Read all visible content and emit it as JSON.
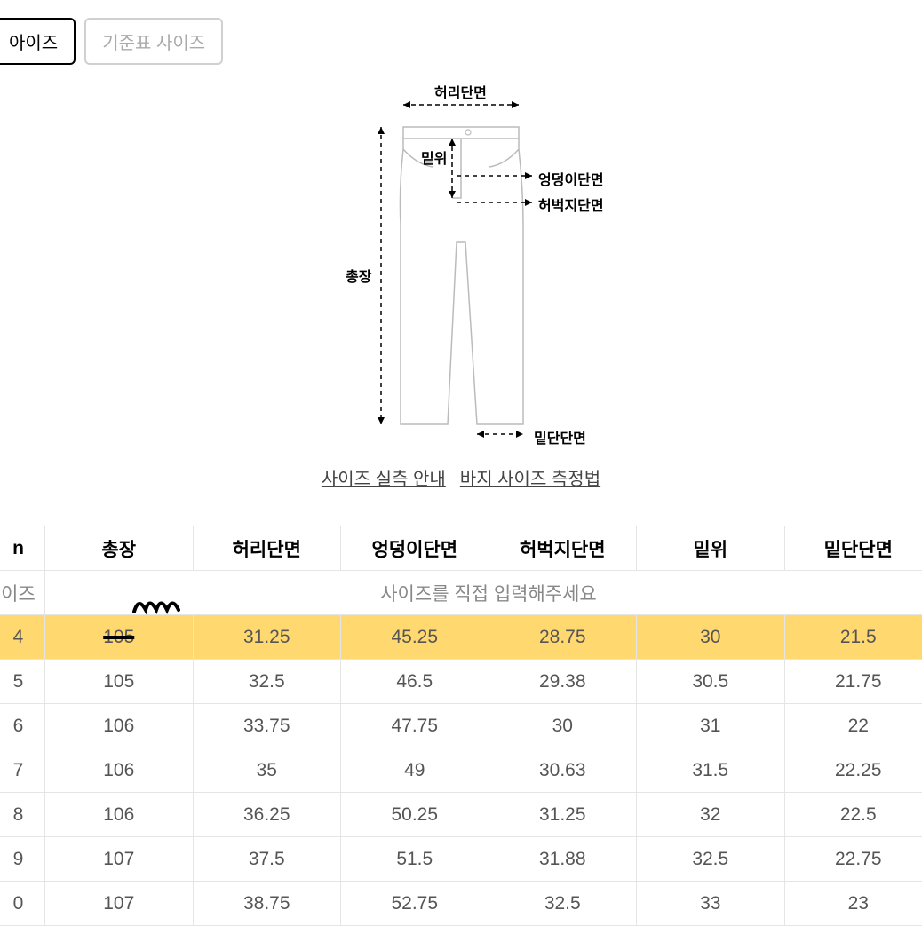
{
  "tabs": {
    "active": "아이즈",
    "inactive": "기준표 사이즈"
  },
  "diagram_labels": {
    "waist": "허리단면",
    "rise": "밑위",
    "hip": "엉덩이단면",
    "thigh": "허벅지단면",
    "length": "총장",
    "hem": "밑단단면"
  },
  "links": {
    "measure_guide": "사이즈 실측 안내",
    "pants_guide": "바지 사이즈 측정법"
  },
  "table": {
    "headers": [
      "n",
      "총장",
      "허리단면",
      "엉덩이단면",
      "허벅지단면",
      "밑위",
      "밑단단면"
    ],
    "headers_trunc": {
      "c0": "n",
      "c1": "이즈"
    },
    "prompt": "사이즈를 직접 입력해주세요",
    "rows": [
      {
        "size": "4",
        "values": [
          "105",
          "31.25",
          "45.25",
          "28.75",
          "30",
          "21.5"
        ],
        "highlight": true,
        "strike_first": true
      },
      {
        "size": "5",
        "values": [
          "105",
          "32.5",
          "46.5",
          "29.38",
          "30.5",
          "21.75"
        ]
      },
      {
        "size": "6",
        "values": [
          "106",
          "33.75",
          "47.75",
          "30",
          "31",
          "22"
        ]
      },
      {
        "size": "7",
        "values": [
          "106",
          "35",
          "49",
          "30.63",
          "31.5",
          "22.25"
        ]
      },
      {
        "size": "8",
        "values": [
          "106",
          "36.25",
          "50.25",
          "31.25",
          "32",
          "22.5"
        ]
      },
      {
        "size": "9",
        "values": [
          "107",
          "37.5",
          "51.5",
          "31.88",
          "32.5",
          "22.75"
        ]
      },
      {
        "size": "0",
        "values": [
          "107",
          "38.75",
          "52.75",
          "32.5",
          "33",
          "23"
        ]
      }
    ]
  },
  "colors": {
    "highlight": "#ffd970",
    "border": "#e5e5e5",
    "text_muted": "#888888",
    "text_primary": "#000000"
  }
}
